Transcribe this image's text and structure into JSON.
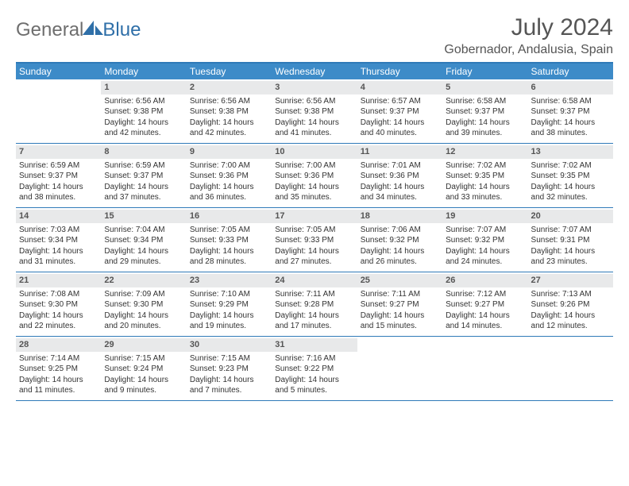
{
  "logo": {
    "part1": "General",
    "part2": "Blue"
  },
  "title": "July 2024",
  "location": "Gobernador, Andalusia, Spain",
  "colors": {
    "header_bar": "#3d8bc8",
    "rule": "#2f7ab8",
    "daynum_bg": "#e8e9ea",
    "text": "#333333",
    "title_text": "#555555",
    "logo_gray": "#6e6e6e",
    "logo_blue": "#2f6fa8"
  },
  "weekdays": [
    "Sunday",
    "Monday",
    "Tuesday",
    "Wednesday",
    "Thursday",
    "Friday",
    "Saturday"
  ],
  "weeks": [
    [
      {
        "n": "",
        "sr": "",
        "ss": "",
        "dl": ""
      },
      {
        "n": "1",
        "sr": "Sunrise: 6:56 AM",
        "ss": "Sunset: 9:38 PM",
        "dl": "Daylight: 14 hours and 42 minutes."
      },
      {
        "n": "2",
        "sr": "Sunrise: 6:56 AM",
        "ss": "Sunset: 9:38 PM",
        "dl": "Daylight: 14 hours and 42 minutes."
      },
      {
        "n": "3",
        "sr": "Sunrise: 6:56 AM",
        "ss": "Sunset: 9:38 PM",
        "dl": "Daylight: 14 hours and 41 minutes."
      },
      {
        "n": "4",
        "sr": "Sunrise: 6:57 AM",
        "ss": "Sunset: 9:37 PM",
        "dl": "Daylight: 14 hours and 40 minutes."
      },
      {
        "n": "5",
        "sr": "Sunrise: 6:58 AM",
        "ss": "Sunset: 9:37 PM",
        "dl": "Daylight: 14 hours and 39 minutes."
      },
      {
        "n": "6",
        "sr": "Sunrise: 6:58 AM",
        "ss": "Sunset: 9:37 PM",
        "dl": "Daylight: 14 hours and 38 minutes."
      }
    ],
    [
      {
        "n": "7",
        "sr": "Sunrise: 6:59 AM",
        "ss": "Sunset: 9:37 PM",
        "dl": "Daylight: 14 hours and 38 minutes."
      },
      {
        "n": "8",
        "sr": "Sunrise: 6:59 AM",
        "ss": "Sunset: 9:37 PM",
        "dl": "Daylight: 14 hours and 37 minutes."
      },
      {
        "n": "9",
        "sr": "Sunrise: 7:00 AM",
        "ss": "Sunset: 9:36 PM",
        "dl": "Daylight: 14 hours and 36 minutes."
      },
      {
        "n": "10",
        "sr": "Sunrise: 7:00 AM",
        "ss": "Sunset: 9:36 PM",
        "dl": "Daylight: 14 hours and 35 minutes."
      },
      {
        "n": "11",
        "sr": "Sunrise: 7:01 AM",
        "ss": "Sunset: 9:36 PM",
        "dl": "Daylight: 14 hours and 34 minutes."
      },
      {
        "n": "12",
        "sr": "Sunrise: 7:02 AM",
        "ss": "Sunset: 9:35 PM",
        "dl": "Daylight: 14 hours and 33 minutes."
      },
      {
        "n": "13",
        "sr": "Sunrise: 7:02 AM",
        "ss": "Sunset: 9:35 PM",
        "dl": "Daylight: 14 hours and 32 minutes."
      }
    ],
    [
      {
        "n": "14",
        "sr": "Sunrise: 7:03 AM",
        "ss": "Sunset: 9:34 PM",
        "dl": "Daylight: 14 hours and 31 minutes."
      },
      {
        "n": "15",
        "sr": "Sunrise: 7:04 AM",
        "ss": "Sunset: 9:34 PM",
        "dl": "Daylight: 14 hours and 29 minutes."
      },
      {
        "n": "16",
        "sr": "Sunrise: 7:05 AM",
        "ss": "Sunset: 9:33 PM",
        "dl": "Daylight: 14 hours and 28 minutes."
      },
      {
        "n": "17",
        "sr": "Sunrise: 7:05 AM",
        "ss": "Sunset: 9:33 PM",
        "dl": "Daylight: 14 hours and 27 minutes."
      },
      {
        "n": "18",
        "sr": "Sunrise: 7:06 AM",
        "ss": "Sunset: 9:32 PM",
        "dl": "Daylight: 14 hours and 26 minutes."
      },
      {
        "n": "19",
        "sr": "Sunrise: 7:07 AM",
        "ss": "Sunset: 9:32 PM",
        "dl": "Daylight: 14 hours and 24 minutes."
      },
      {
        "n": "20",
        "sr": "Sunrise: 7:07 AM",
        "ss": "Sunset: 9:31 PM",
        "dl": "Daylight: 14 hours and 23 minutes."
      }
    ],
    [
      {
        "n": "21",
        "sr": "Sunrise: 7:08 AM",
        "ss": "Sunset: 9:30 PM",
        "dl": "Daylight: 14 hours and 22 minutes."
      },
      {
        "n": "22",
        "sr": "Sunrise: 7:09 AM",
        "ss": "Sunset: 9:30 PM",
        "dl": "Daylight: 14 hours and 20 minutes."
      },
      {
        "n": "23",
        "sr": "Sunrise: 7:10 AM",
        "ss": "Sunset: 9:29 PM",
        "dl": "Daylight: 14 hours and 19 minutes."
      },
      {
        "n": "24",
        "sr": "Sunrise: 7:11 AM",
        "ss": "Sunset: 9:28 PM",
        "dl": "Daylight: 14 hours and 17 minutes."
      },
      {
        "n": "25",
        "sr": "Sunrise: 7:11 AM",
        "ss": "Sunset: 9:27 PM",
        "dl": "Daylight: 14 hours and 15 minutes."
      },
      {
        "n": "26",
        "sr": "Sunrise: 7:12 AM",
        "ss": "Sunset: 9:27 PM",
        "dl": "Daylight: 14 hours and 14 minutes."
      },
      {
        "n": "27",
        "sr": "Sunrise: 7:13 AM",
        "ss": "Sunset: 9:26 PM",
        "dl": "Daylight: 14 hours and 12 minutes."
      }
    ],
    [
      {
        "n": "28",
        "sr": "Sunrise: 7:14 AM",
        "ss": "Sunset: 9:25 PM",
        "dl": "Daylight: 14 hours and 11 minutes."
      },
      {
        "n": "29",
        "sr": "Sunrise: 7:15 AM",
        "ss": "Sunset: 9:24 PM",
        "dl": "Daylight: 14 hours and 9 minutes."
      },
      {
        "n": "30",
        "sr": "Sunrise: 7:15 AM",
        "ss": "Sunset: 9:23 PM",
        "dl": "Daylight: 14 hours and 7 minutes."
      },
      {
        "n": "31",
        "sr": "Sunrise: 7:16 AM",
        "ss": "Sunset: 9:22 PM",
        "dl": "Daylight: 14 hours and 5 minutes."
      },
      {
        "n": "",
        "sr": "",
        "ss": "",
        "dl": ""
      },
      {
        "n": "",
        "sr": "",
        "ss": "",
        "dl": ""
      },
      {
        "n": "",
        "sr": "",
        "ss": "",
        "dl": ""
      }
    ]
  ]
}
